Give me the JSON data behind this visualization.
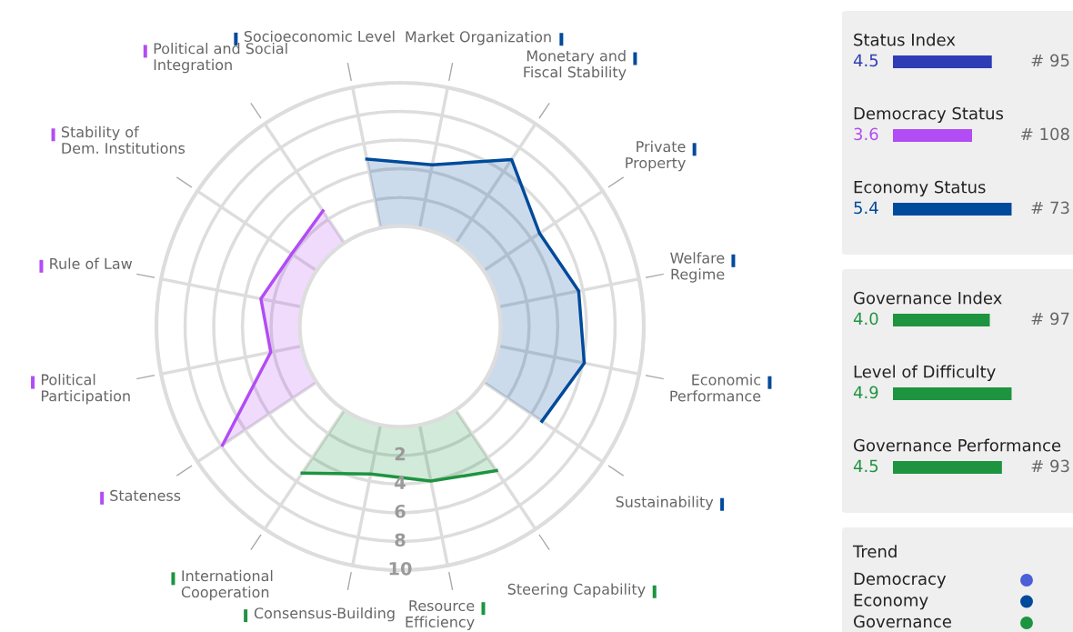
{
  "chart_data": [
    {
      "type": "radar",
      "categories": [
        "Market Organization",
        "Monetary and\nFiscal Stability",
        "Private\nProperty",
        "Welfare\nRegime",
        "Economic\nPerformance",
        "Sustainability",
        "Steering Capability",
        "Resource\nEfficiency",
        "Consensus-Building",
        "International\nCooperation",
        "Stateness",
        "Political\nParticipation",
        "Rule of Law",
        "Stability of\nDem. Institutions",
        "Political and Social\nIntegration",
        "Socioeconomic Level"
      ],
      "series": [
        {
          "color": "#004a9b",
          "values": [
            4.5,
            7.0,
            4.7,
            5.7,
            6.1,
            4.9,
            null,
            null,
            null,
            null,
            null,
            null,
            null,
            null,
            null,
            4.9
          ]
        },
        {
          "color": "#1e9440",
          "values": [
            null,
            null,
            null,
            null,
            null,
            null,
            5.1,
            4.0,
            3.5,
            5.3,
            null,
            null,
            null,
            null,
            null,
            null
          ]
        },
        {
          "color": "#b24cf5",
          "values": [
            null,
            null,
            null,
            null,
            null,
            null,
            null,
            null,
            null,
            null,
            7.9,
            2.2,
            2.9,
            2.1,
            2.7,
            null
          ]
        }
      ],
      "ylim": [
        -7,
        10
      ],
      "yticks": [
        2,
        4,
        6,
        8,
        10
      ],
      "grid": true,
      "marker": "none",
      "line_style": "solid"
    },
    {
      "type": "bar",
      "orientation": "horizontal",
      "categories": [
        "Status Index",
        "Democracy Status",
        "Economy Status"
      ],
      "values": [
        4.5,
        3.6,
        5.4
      ],
      "value_labels": [
        "4.5",
        "3.6",
        "5.4"
      ],
      "colors": [
        "#2e3db5",
        "#b24cf5",
        "#004a9b"
      ],
      "tick_labels": false,
      "annotations": [
        "# 95",
        "# 108",
        "# 73"
      ]
    },
    {
      "type": "bar",
      "orientation": "horizontal",
      "categories": [
        "Governance Index",
        "Level of Difficulty",
        "Governance Performance"
      ],
      "values": [
        4.0,
        4.9,
        4.5
      ],
      "value_labels": [
        "4.0",
        "4.9",
        "4.5"
      ],
      "colors": [
        "#1e9440",
        "#1e9440",
        "#1e9440"
      ],
      "tick_labels": false,
      "annotations": [
        "# 97",
        "# 93"
      ]
    },
    {
      "type": "other",
      "title": "Trend",
      "categories": [
        "Democracy",
        "Economy",
        "Governance"
      ],
      "colors": [
        "#4a5fd8",
        "#004a9b",
        "#1e9440"
      ]
    }
  ]
}
